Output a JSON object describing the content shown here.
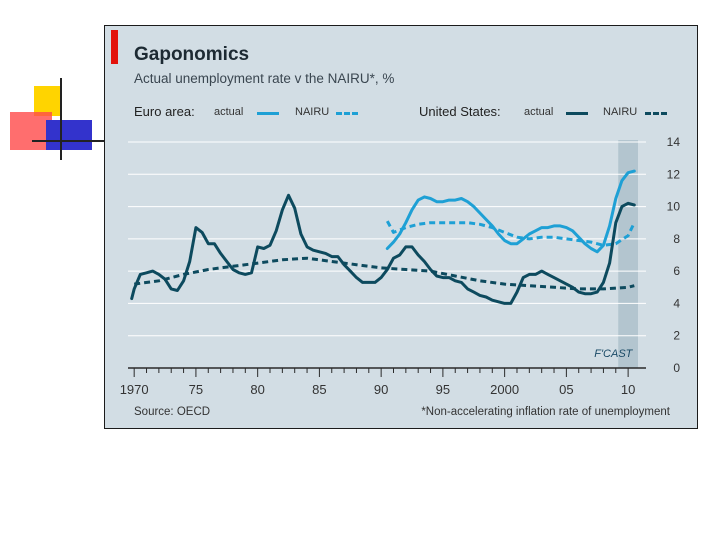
{
  "title": "Gaponomics",
  "subtitle": "Actual unemployment rate v the NAIRU*, %",
  "source": "Source: OECD",
  "footnote": "*Non-accelerating inflation rate of unemployment",
  "forecast_label": "F'CAST",
  "legend": {
    "euro_group": "Euro area:",
    "us_group": "United States:",
    "actual": "actual",
    "nairu": "NAIRU"
  },
  "colors": {
    "euro": "#1ea0d5",
    "us": "#0d4a5e",
    "background": "#d2dde4",
    "forecast_band": "#b3c5cf",
    "title_accent": "#e3120b"
  },
  "chart_data": {
    "type": "line",
    "title": "Gaponomics",
    "subtitle": "Actual unemployment rate v the NAIRU*, %",
    "xlim": [
      1969.5,
      2010.8
    ],
    "ylim": [
      0,
      14
    ],
    "x_ticks": [
      "1970",
      "75",
      "80",
      "85",
      "90",
      "95",
      "2000",
      "05",
      "10"
    ],
    "y_ticks": [
      "0",
      "2",
      "4",
      "6",
      "8",
      "10",
      "12",
      "14"
    ],
    "forecast_start": 2009.2,
    "grid": true,
    "legend_position": "top",
    "series": [
      {
        "name": "Euro area: actual",
        "style": "solid",
        "color": "#1ea0d5",
        "x": [
          1990.5,
          1991,
          1991.5,
          1992,
          1992.5,
          1993,
          1993.5,
          1994,
          1994.5,
          1995,
          1995.5,
          1996,
          1996.5,
          1997,
          1997.5,
          1998,
          1998.5,
          1999,
          1999.5,
          2000,
          2000.5,
          2001,
          2001.5,
          2002,
          2002.5,
          2003,
          2003.5,
          2004,
          2004.5,
          2005,
          2005.5,
          2006,
          2006.5,
          2007,
          2007.5,
          2008,
          2008.5,
          2009,
          2009.5,
          2010,
          2010.5
        ],
        "y": [
          7.4,
          7.8,
          8.3,
          9.0,
          9.8,
          10.4,
          10.6,
          10.5,
          10.3,
          10.3,
          10.4,
          10.4,
          10.5,
          10.3,
          10.0,
          9.6,
          9.2,
          8.8,
          8.3,
          7.9,
          7.7,
          7.7,
          8.0,
          8.3,
          8.5,
          8.7,
          8.7,
          8.8,
          8.8,
          8.7,
          8.5,
          8.1,
          7.7,
          7.4,
          7.2,
          7.6,
          8.8,
          10.5,
          11.6,
          12.1,
          12.2
        ]
      },
      {
        "name": "Euro area: NAIRU",
        "style": "dashed",
        "color": "#1ea0d5",
        "x": [
          1990.5,
          1991,
          1992,
          1993,
          1994,
          1995,
          1996,
          1997,
          1998,
          1999,
          2000,
          2001,
          2002,
          2003,
          2004,
          2005,
          2006,
          2007,
          2008,
          2009,
          2010,
          2010.5
        ],
        "y": [
          9.1,
          8.4,
          8.7,
          8.9,
          9.0,
          9.0,
          9.0,
          9.0,
          8.9,
          8.7,
          8.4,
          8.1,
          8.0,
          8.1,
          8.1,
          8.0,
          7.9,
          7.8,
          7.6,
          7.7,
          8.2,
          9.0
        ]
      },
      {
        "name": "United States: actual",
        "style": "solid",
        "color": "#0d4a5e",
        "x": [
          1969.8,
          1970,
          1970.5,
          1971,
          1971.5,
          1972,
          1972.5,
          1973,
          1973.5,
          1974,
          1974.5,
          1975,
          1975.5,
          1976,
          1976.5,
          1977,
          1977.5,
          1978,
          1978.5,
          1979,
          1979.5,
          1980,
          1980.5,
          1981,
          1981.5,
          1982,
          1982.5,
          1983,
          1983.5,
          1984,
          1984.5,
          1985,
          1985.5,
          1986,
          1986.5,
          1987,
          1987.5,
          1988,
          1988.5,
          1989,
          1989.5,
          1990,
          1990.5,
          1991,
          1991.5,
          1992,
          1992.5,
          1993,
          1993.5,
          1994,
          1994.5,
          1995,
          1995.5,
          1996,
          1996.5,
          1997,
          1997.5,
          1998,
          1998.5,
          1999,
          1999.5,
          2000,
          2000.5,
          2001,
          2001.5,
          2002,
          2002.5,
          2003,
          2003.5,
          2004,
          2004.5,
          2005,
          2005.5,
          2006,
          2006.5,
          2007,
          2007.5,
          2008,
          2008.5,
          2009,
          2009.5,
          2010,
          2010.5
        ],
        "y": [
          4.3,
          4.9,
          5.8,
          5.9,
          6.0,
          5.8,
          5.5,
          4.9,
          4.8,
          5.4,
          6.6,
          8.7,
          8.4,
          7.7,
          7.7,
          7.1,
          6.6,
          6.1,
          5.9,
          5.8,
          5.9,
          7.5,
          7.4,
          7.6,
          8.5,
          9.8,
          10.7,
          9.9,
          8.3,
          7.5,
          7.3,
          7.2,
          7.1,
          6.9,
          6.9,
          6.4,
          6.0,
          5.6,
          5.3,
          5.3,
          5.3,
          5.6,
          6.1,
          6.8,
          7.0,
          7.5,
          7.5,
          7.0,
          6.6,
          6.1,
          5.7,
          5.6,
          5.6,
          5.4,
          5.3,
          4.9,
          4.7,
          4.5,
          4.4,
          4.2,
          4.1,
          4.0,
          4.0,
          4.7,
          5.6,
          5.8,
          5.8,
          6.0,
          5.8,
          5.6,
          5.4,
          5.2,
          5.0,
          4.7,
          4.6,
          4.6,
          4.7,
          5.3,
          6.5,
          9.0,
          10.0,
          10.2,
          10.1
        ]
      },
      {
        "name": "United States: NAIRU",
        "style": "dashed",
        "color": "#0d4a5e",
        "x": [
          1970,
          1972,
          1974,
          1976,
          1978,
          1980,
          1982,
          1984,
          1986,
          1988,
          1990,
          1992,
          1994,
          1996,
          1998,
          2000,
          2002,
          2004,
          2006,
          2008,
          2010,
          2010.5
        ],
        "y": [
          5.2,
          5.4,
          5.8,
          6.1,
          6.3,
          6.5,
          6.7,
          6.8,
          6.6,
          6.4,
          6.2,
          6.1,
          6.0,
          5.7,
          5.4,
          5.2,
          5.1,
          5.0,
          4.9,
          4.9,
          5.0,
          5.1
        ]
      }
    ]
  }
}
